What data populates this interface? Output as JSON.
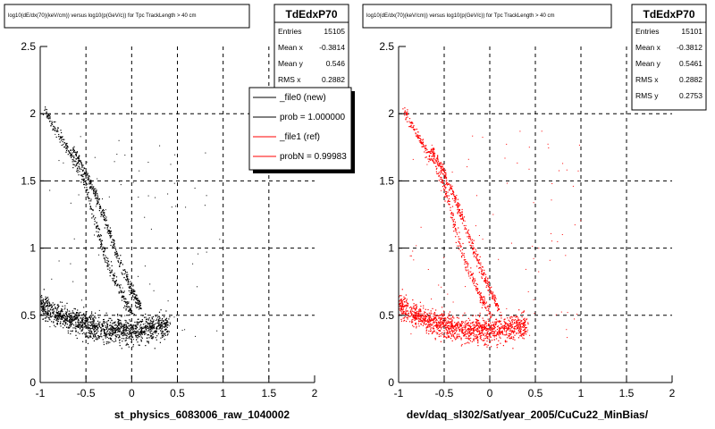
{
  "chart_data": [
    {
      "type": "scatter",
      "title": "log10(dE/dx(70)(keV/cm)) versus log10(p(GeV/c)) for Tpc TrackLength > 40 cm",
      "xlabel": "st_physics_6083006_raw_1040002",
      "ylabel": "",
      "xlim": [
        -1,
        2
      ],
      "ylim": [
        0,
        2.5
      ],
      "x_ticks": [
        "-1",
        "-0.5",
        "0",
        "0.5",
        "1",
        "1.5",
        "2"
      ],
      "y_ticks": [
        "0",
        "0.5",
        "1",
        "1.5",
        "2",
        "2.5"
      ],
      "grid": true,
      "color": "#000000",
      "stats": {
        "name": "TdEdxP70",
        "rows": [
          {
            "label": "Entries",
            "value": "15105"
          },
          {
            "label": "Mean x",
            "value": "-0.3814"
          },
          {
            "label": "Mean y",
            "value": "0.546"
          },
          {
            "label": "RMS x",
            "value": "0.2882"
          }
        ]
      },
      "legend": {
        "placement": "top-right",
        "entries": [
          {
            "label": "_file0 (new)",
            "color": "#000000"
          },
          {
            "label": "prob = 1.000000",
            "color": "#000000"
          },
          {
            "label": "_file1 (ref)",
            "color": "#ff0000"
          },
          {
            "label": "probN = 0.99983",
            "color": "#ff0000"
          }
        ]
      },
      "bands": [
        {
          "x": [
            -0.95,
            -0.8,
            -0.6,
            -0.5,
            -0.4,
            -0.3,
            -0.2,
            -0.1,
            0.0
          ],
          "y": [
            2.02,
            1.85,
            1.62,
            1.45,
            1.2,
            0.95,
            0.78,
            0.64,
            0.52
          ]
        },
        {
          "x": [
            -0.65,
            -0.5,
            -0.4,
            -0.3,
            -0.2,
            -0.1,
            0.0,
            0.1
          ],
          "y": [
            1.75,
            1.55,
            1.4,
            1.22,
            1.02,
            0.85,
            0.68,
            0.55
          ]
        },
        {
          "x": [
            -1.0,
            -0.8,
            -0.6,
            -0.4,
            -0.2,
            0.0,
            0.2,
            0.4
          ],
          "y": [
            0.58,
            0.5,
            0.45,
            0.41,
            0.39,
            0.39,
            0.41,
            0.43
          ]
        }
      ]
    },
    {
      "type": "scatter",
      "title": "log10(dE/dx(70)(keV/cm)) versus log10(p(GeV/c)) for Tpc TrackLength > 40 cm",
      "xlabel": "dev/daq_sl302/Sat/year_2005/CuCu22_MinBias/",
      "ylabel": "",
      "xlim": [
        -1,
        2
      ],
      "ylim": [
        0,
        2.5
      ],
      "x_ticks": [
        "-1",
        "-0.5",
        "0",
        "0.5",
        "1",
        "1.5",
        "2"
      ],
      "y_ticks": [
        "0",
        "0.5",
        "1",
        "1.5",
        "2",
        "2.5"
      ],
      "grid": true,
      "color": "#ff0000",
      "stats": {
        "name": "TdEdxP70",
        "rows": [
          {
            "label": "Entries",
            "value": "15101"
          },
          {
            "label": "Mean x",
            "value": "-0.3812"
          },
          {
            "label": "Mean y",
            "value": "0.5461"
          },
          {
            "label": "RMS x",
            "value": "0.2882"
          },
          {
            "label": "RMS y",
            "value": "0.2753"
          }
        ]
      },
      "bands": [
        {
          "x": [
            -0.95,
            -0.8,
            -0.6,
            -0.5,
            -0.4,
            -0.3,
            -0.2,
            -0.1,
            0.0
          ],
          "y": [
            2.02,
            1.85,
            1.62,
            1.45,
            1.2,
            0.95,
            0.78,
            0.64,
            0.52
          ]
        },
        {
          "x": [
            -0.65,
            -0.5,
            -0.4,
            -0.3,
            -0.2,
            -0.1,
            0.0,
            0.1
          ],
          "y": [
            1.75,
            1.55,
            1.4,
            1.22,
            1.02,
            0.85,
            0.68,
            0.55
          ]
        },
        {
          "x": [
            -1.0,
            -0.8,
            -0.6,
            -0.4,
            -0.2,
            0.0,
            0.2,
            0.4
          ],
          "y": [
            0.58,
            0.5,
            0.45,
            0.41,
            0.39,
            0.39,
            0.41,
            0.43
          ]
        }
      ]
    }
  ]
}
